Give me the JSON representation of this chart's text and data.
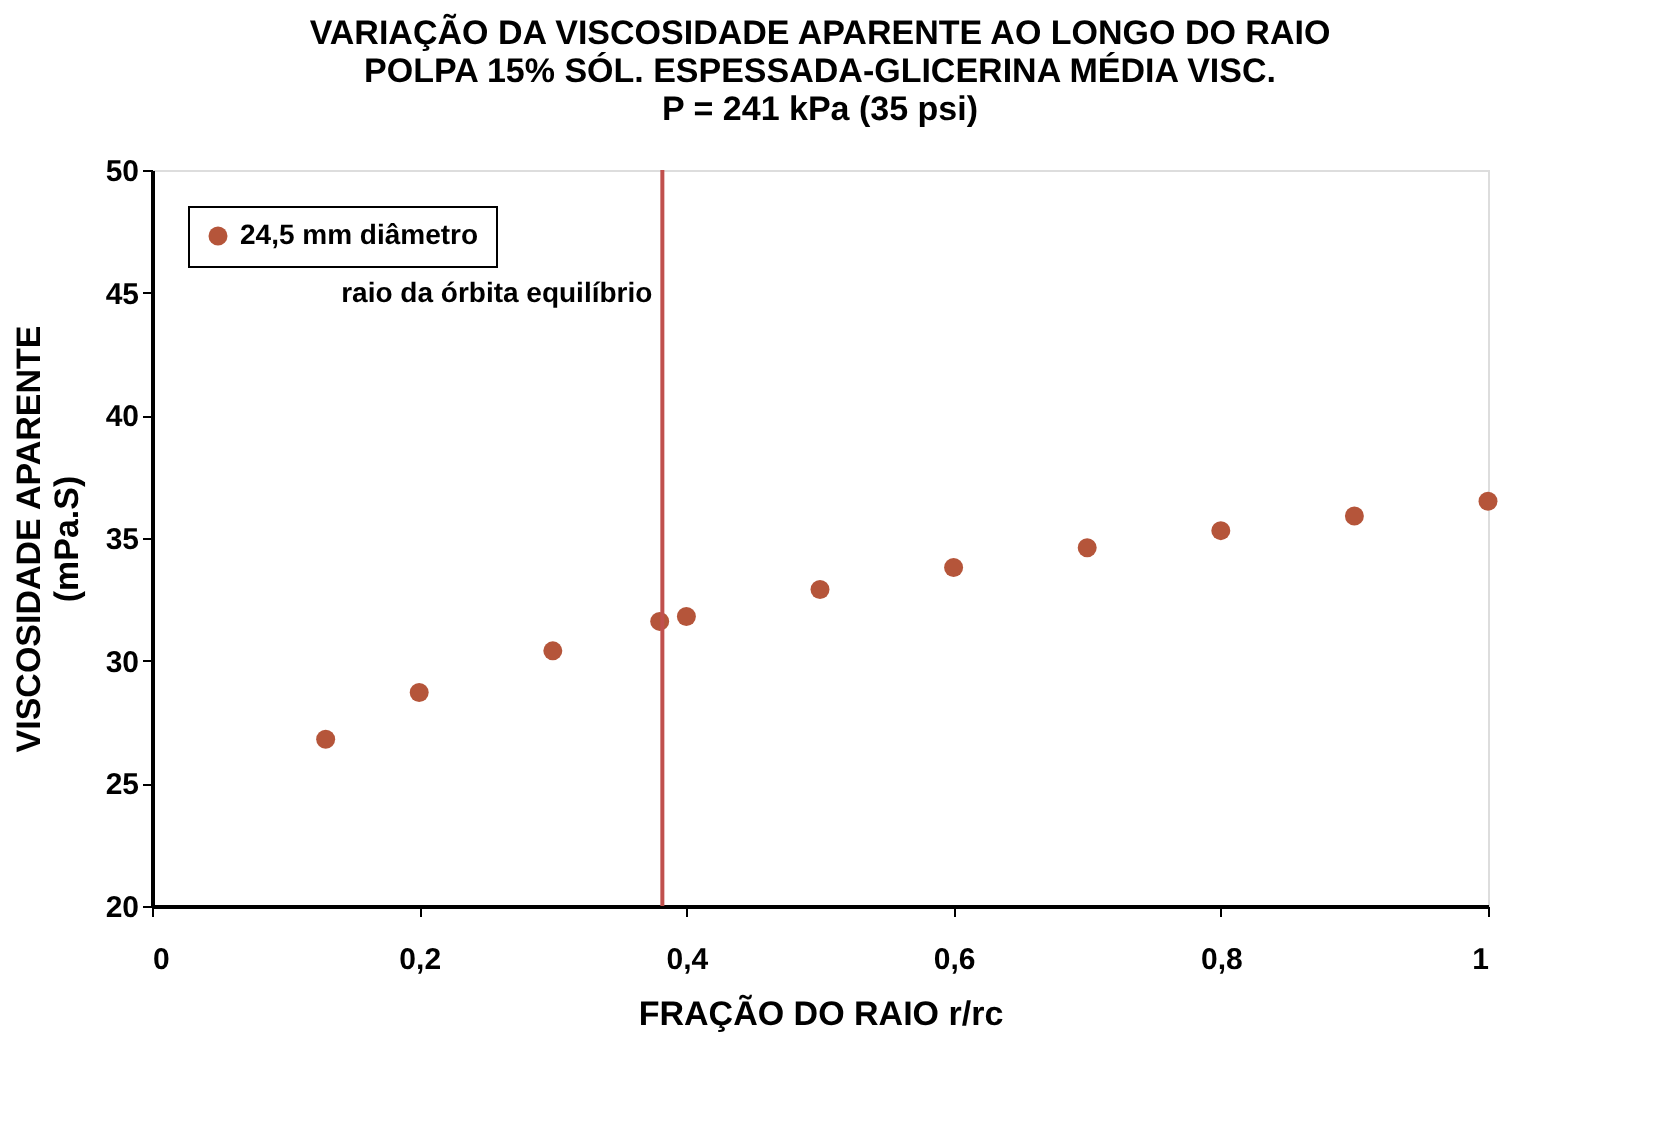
{
  "chart_data": {
    "type": "scatter",
    "title": "VARIAÇÃO DA VISCOSIDADE APARENTE AO LONGO DO RAIO\nPOLPA 15% SÓL. ESPESSADA-GLICERINA  MÉDIA  VISC.\nP = 241 kPa (35 psi)",
    "xlabel": "FRAÇÃO DO RAIO r/rc",
    "ylabel": "VISCOSIDADE APARENTE\n(mPa.S)",
    "x": [
      0.13,
      0.2,
      0.3,
      0.38,
      0.4,
      0.5,
      0.6,
      0.7,
      0.8,
      0.9,
      1.0
    ],
    "series": [
      {
        "name": "24,5 mm diâmetro",
        "color": "#b5553a",
        "values": [
          26.8,
          28.7,
          30.4,
          31.6,
          31.8,
          32.9,
          33.8,
          34.6,
          35.3,
          35.9,
          36.5
        ]
      }
    ],
    "ref_lines": [
      {
        "axis": "x",
        "value": 0.382,
        "label": "raio da órbita equilíbrio",
        "color": "#c0504d"
      }
    ],
    "xlim": [
      0,
      1
    ],
    "ylim": [
      20,
      50
    ],
    "xticks": [
      0,
      {
        "value": 0.2,
        "label": "0,2"
      },
      {
        "value": 0.4,
        "label": "0,4"
      },
      {
        "value": 0.6,
        "label": "0,6"
      },
      {
        "value": 0.8,
        "label": "0,8"
      },
      1
    ],
    "yticks": [
      20,
      25,
      30,
      35,
      40,
      45,
      50
    ],
    "grid": false,
    "legend": "top left",
    "marker": "circle"
  }
}
